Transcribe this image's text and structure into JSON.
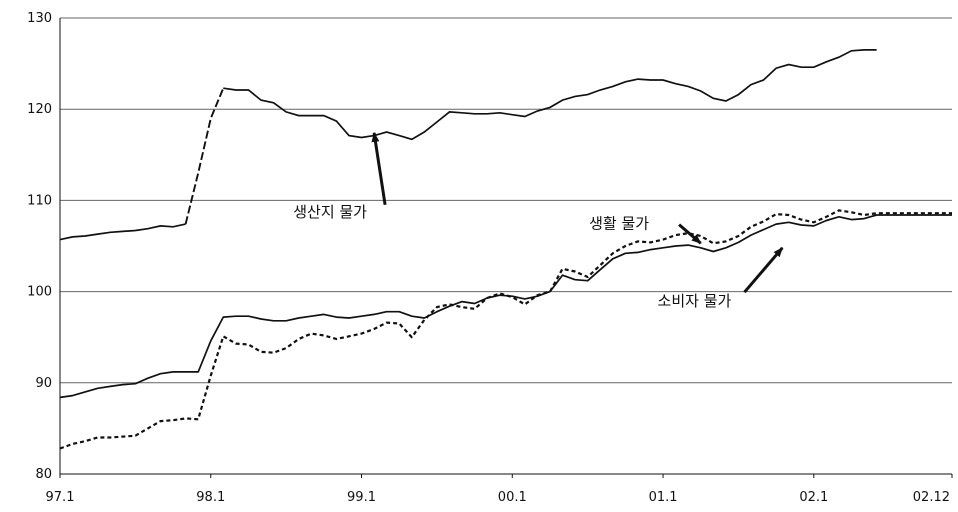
{
  "chart_data": {
    "type": "line",
    "title": "",
    "xlabel": "",
    "ylabel": "",
    "ylim": [
      80,
      130
    ],
    "yticks": [
      80,
      90,
      100,
      110,
      120,
      130
    ],
    "xticks": [
      {
        "label": "97.1",
        "t": 0
      },
      {
        "label": "98.1",
        "t": 12
      },
      {
        "label": "99.1",
        "t": 24
      },
      {
        "label": "00.1",
        "t": 36
      },
      {
        "label": "01.1",
        "t": 48
      },
      {
        "label": "02.1",
        "t": 60
      },
      {
        "label": "02.12",
        "t": 71
      }
    ],
    "x_range": [
      0,
      71
    ],
    "grid": "horizontal",
    "series": [
      {
        "id": "producer",
        "style": "solid-dashed",
        "color": "#111111",
        "values": [
          105.7,
          106.0,
          106.1,
          106.3,
          106.5,
          106.6,
          106.7,
          106.9,
          107.2,
          107.1,
          107.4,
          113.0,
          119.0,
          122.3,
          122.1,
          122.1,
          121.0,
          120.7,
          119.7,
          119.3,
          119.3,
          119.3,
          118.7,
          117.1,
          116.9,
          117.1,
          117.5,
          117.1,
          116.7,
          117.5,
          118.6,
          119.7,
          119.6,
          119.5,
          119.5,
          119.6,
          119.4,
          119.2,
          119.8,
          120.2,
          121.0,
          121.4,
          121.6,
          122.1,
          122.5,
          123.0,
          123.3,
          123.2,
          123.2,
          122.8,
          122.5,
          122.0,
          121.2,
          120.9,
          121.6,
          122.7,
          123.2,
          124.5,
          124.9,
          124.6,
          124.6,
          125.2,
          125.7,
          126.4,
          126.5,
          126.5
        ]
      },
      {
        "id": "consumer",
        "style": "solid",
        "color": "#111111",
        "values": [
          88.4,
          88.6,
          89.0,
          89.4,
          89.6,
          89.8,
          89.9,
          90.5,
          91.0,
          91.2,
          91.2,
          91.2,
          94.6,
          97.2,
          97.3,
          97.3,
          97.0,
          96.8,
          96.8,
          97.1,
          97.3,
          97.5,
          97.2,
          97.1,
          97.3,
          97.5,
          97.8,
          97.8,
          97.3,
          97.1,
          97.8,
          98.4,
          98.9,
          98.7,
          99.3,
          99.6,
          99.5,
          99.2,
          99.5,
          100.0,
          101.8,
          101.3,
          101.2,
          102.4,
          103.6,
          104.2,
          104.3,
          104.6,
          104.8,
          105.0,
          105.1,
          104.8,
          104.4,
          104.8,
          105.4,
          106.2,
          106.8,
          107.4,
          107.6,
          107.3,
          107.2,
          107.8,
          108.2,
          107.9,
          108.0,
          108.4,
          108.4,
          108.4,
          108.4,
          108.4,
          108.4,
          108.4
        ]
      },
      {
        "id": "living",
        "style": "dotted",
        "color": "#111111",
        "values": [
          82.8,
          83.3,
          83.6,
          84.0,
          84.0,
          84.1,
          84.2,
          85.0,
          85.8,
          85.9,
          86.1,
          86.0,
          90.8,
          95.1,
          94.3,
          94.2,
          93.4,
          93.3,
          93.8,
          94.8,
          95.4,
          95.2,
          94.8,
          95.1,
          95.4,
          95.9,
          96.6,
          96.5,
          95.0,
          96.9,
          98.3,
          98.6,
          98.3,
          98.1,
          99.3,
          99.8,
          99.4,
          98.6,
          99.6,
          100.0,
          102.5,
          102.2,
          101.6,
          102.9,
          104.2,
          105.0,
          105.5,
          105.4,
          105.7,
          106.2,
          106.4,
          106.1,
          105.3,
          105.5,
          106.1,
          107.1,
          107.7,
          108.5,
          108.4,
          107.9,
          107.6,
          108.2,
          108.9,
          108.7,
          108.4,
          108.6,
          108.6,
          108.6,
          108.6,
          108.6,
          108.6,
          108.6
        ]
      }
    ],
    "annotations": [
      {
        "text": "생산지 물가",
        "anchor_t": 25.0,
        "anchor_v": 117.4,
        "label_t": 21.5,
        "label_v": 108.2
      },
      {
        "text": "생활 물가",
        "anchor_t": 51.0,
        "anchor_v": 105.3,
        "label_t": 44.5,
        "label_v": 106.9
      },
      {
        "text": "소비자 물가",
        "anchor_t": 57.5,
        "anchor_v": 104.8,
        "label_t": 50.5,
        "label_v": 98.4
      }
    ]
  }
}
